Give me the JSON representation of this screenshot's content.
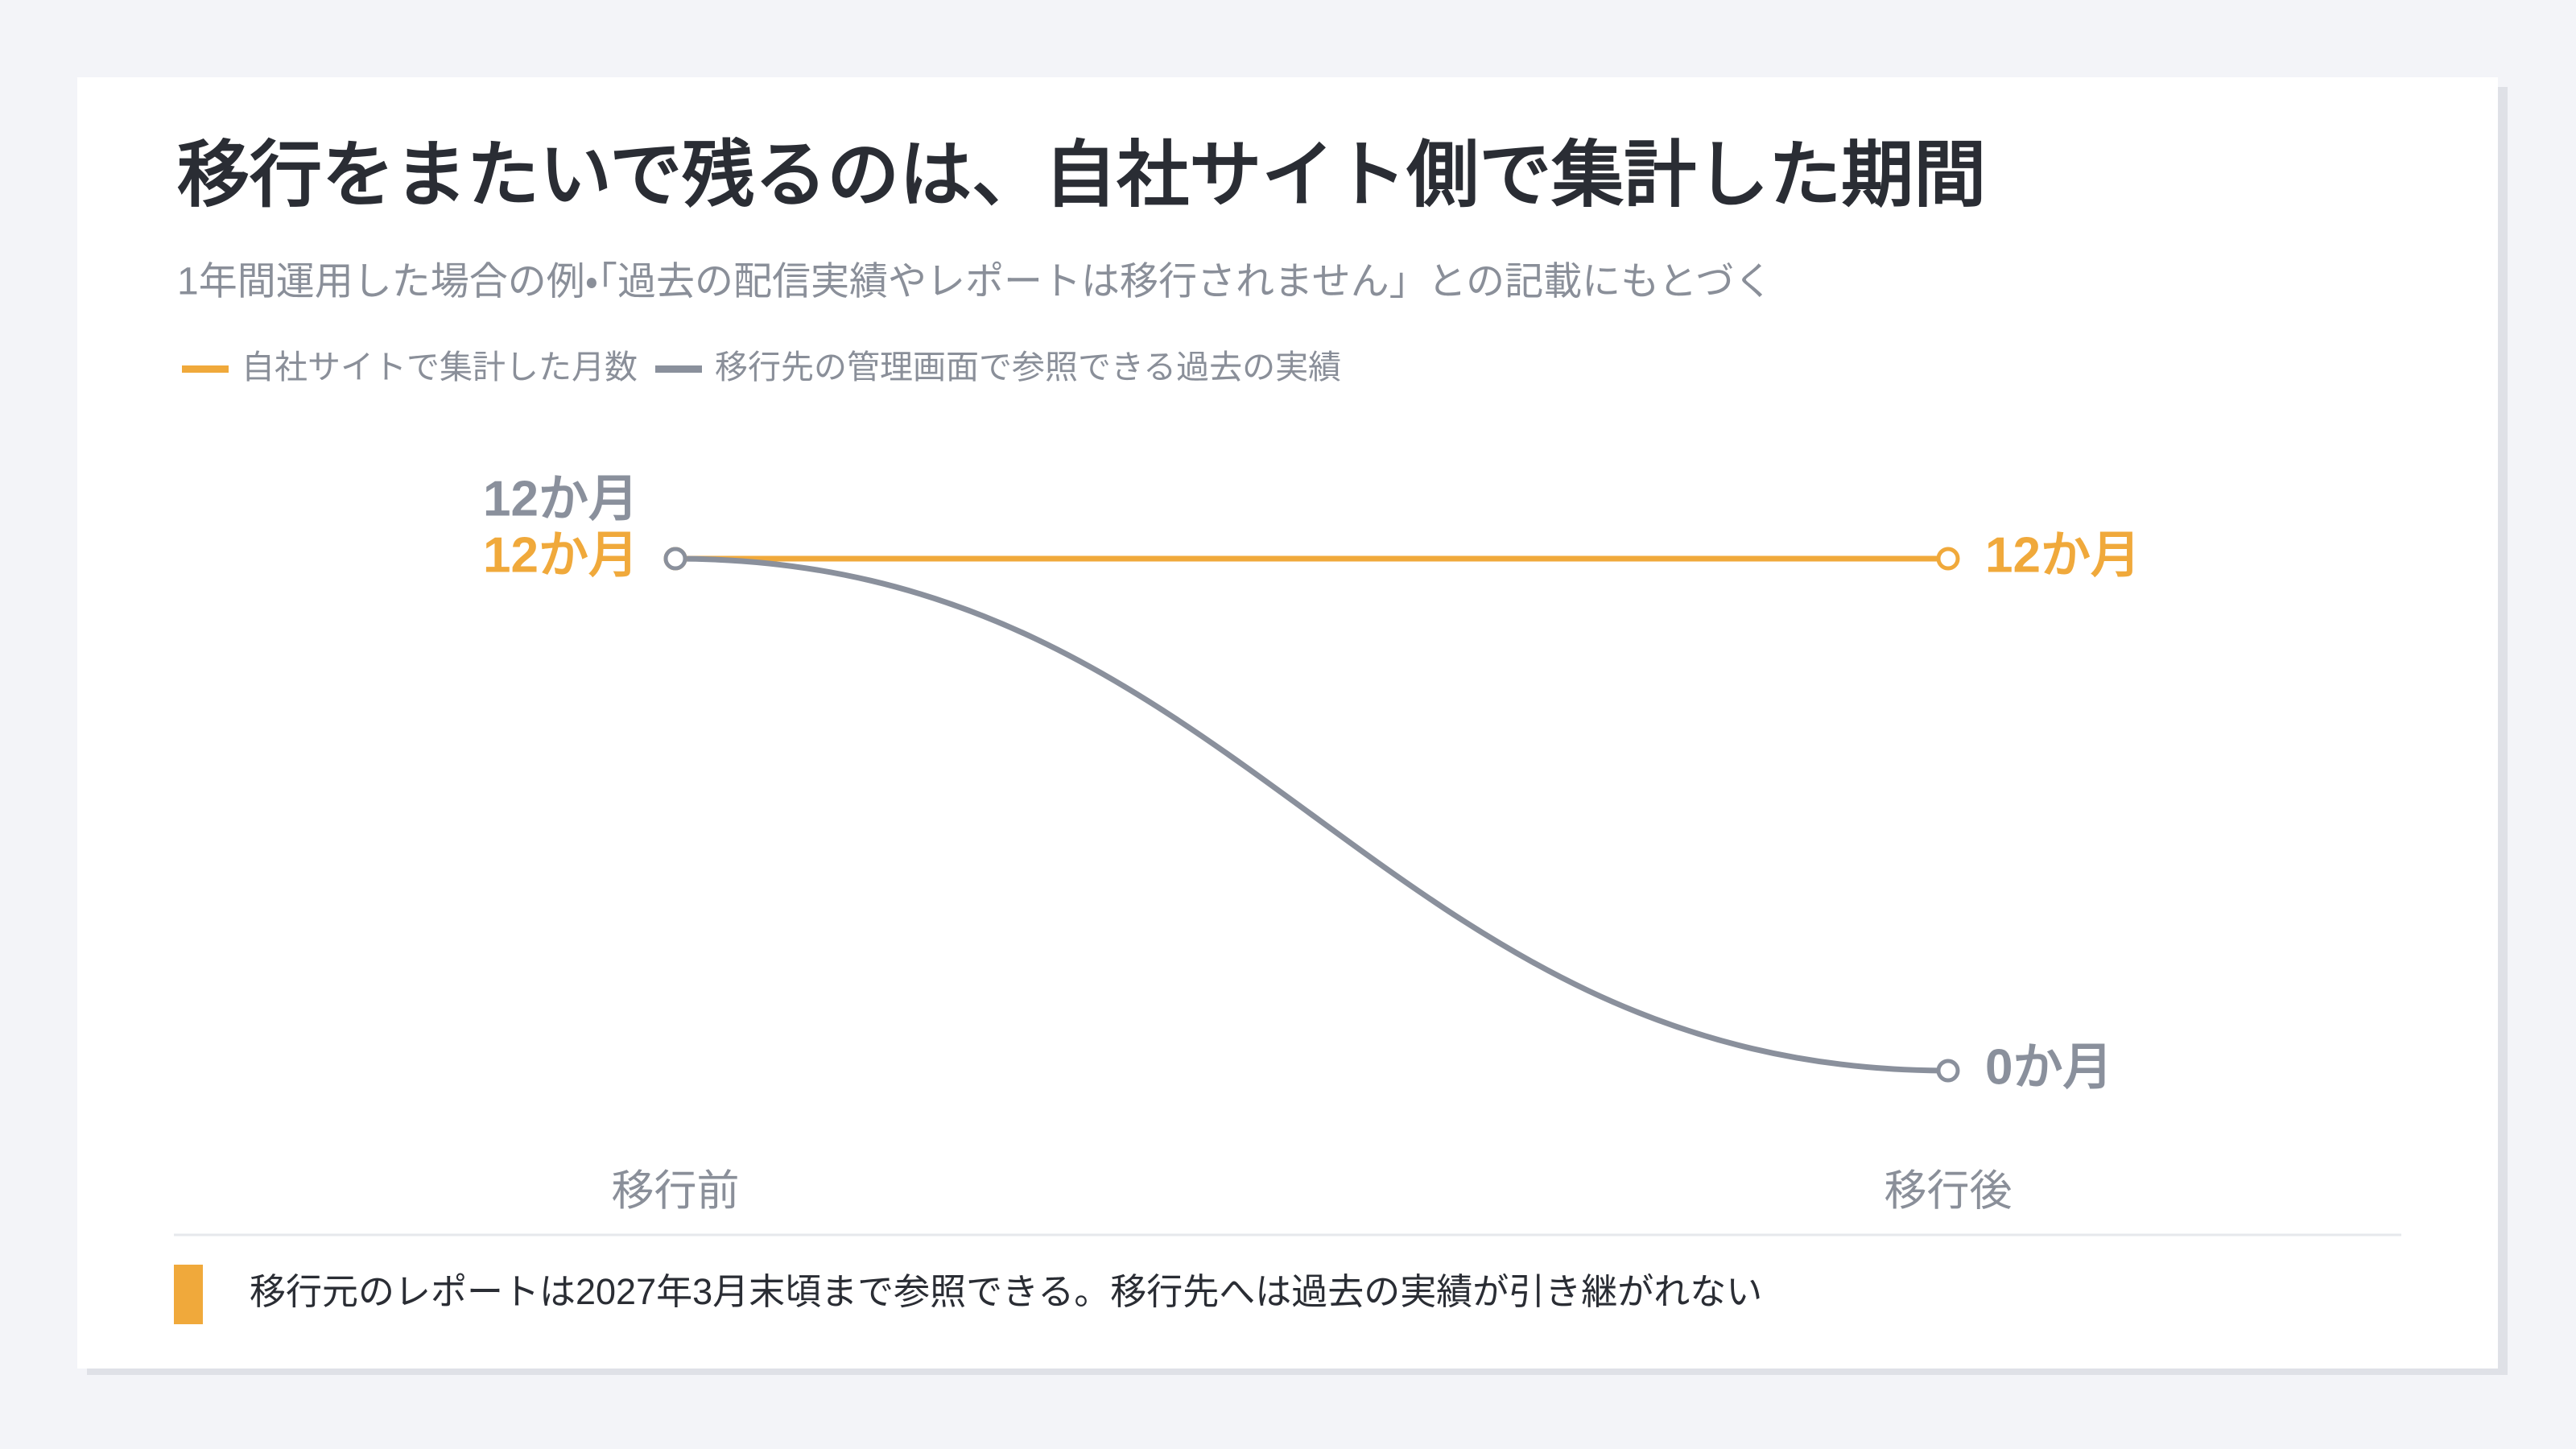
{
  "chart_data": {
    "type": "line",
    "title": "移行をまたいで残るのは、自社サイト側で集計した期間",
    "subtitle": "1年間運用した場合の例・「過去の配信実績やレポートは移行されません」との記載にもとづく",
    "categories": [
      "移行前",
      "移行後"
    ],
    "series": [
      {
        "name": "自社サイトで集計した月数",
        "color": "#f0a93b",
        "values": [
          12,
          12
        ],
        "value_labels": [
          "12か月",
          "12か月"
        ]
      },
      {
        "name": "移行先の管理画面で参照できる過去の実績",
        "color": "#8a909c",
        "values": [
          12,
          0
        ],
        "value_labels": [
          "12か月",
          "0か月"
        ]
      }
    ],
    "footnote": "移行元のレポートは2027年3月末頃まで参照できる。移行先へは過去の実績が引き継がれない"
  }
}
